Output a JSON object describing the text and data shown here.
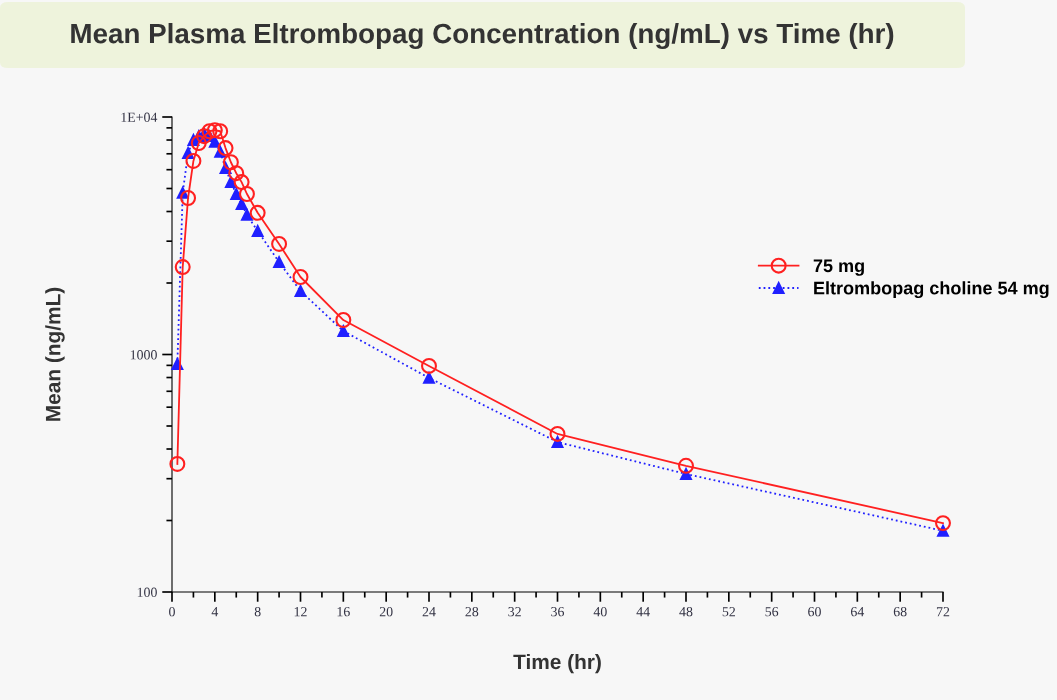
{
  "chart_data": {
    "type": "line",
    "title": "Mean Plasma Eltrombopag Concentration (ng/mL) vs Time (hr)",
    "xlabel": "Time (hr)",
    "ylabel": "Mean (ng/mL)",
    "x": [
      0.5,
      1,
      1.5,
      2,
      2.5,
      3,
      3.5,
      4,
      4.5,
      5,
      5.5,
      6,
      6.5,
      7,
      8,
      10,
      12,
      16,
      24,
      36,
      48,
      72
    ],
    "series": [
      {
        "name": "75 mg",
        "color": "#ff2020",
        "marker": "circle",
        "line_style": "solid",
        "values": [
          346,
          2335,
          4560,
          6530,
          7770,
          8300,
          8710,
          8800,
          8710,
          7400,
          6450,
          5800,
          5320,
          4740,
          3950,
          2920,
          2120,
          1397,
          895,
          463,
          340,
          195
        ]
      },
      {
        "name": "Eltrombopag choline 54 mg",
        "color": "#2020ff",
        "marker": "triangle",
        "line_style": "dotted",
        "values": [
          912,
          4790,
          7050,
          8000,
          8300,
          8500,
          8300,
          7850,
          7130,
          6100,
          5320,
          4740,
          4300,
          3870,
          3310,
          2450,
          1850,
          1255,
          797,
          428,
          314,
          181
        ]
      }
    ],
    "log": "y",
    "xlim": [
      0,
      72
    ],
    "ylim": [
      100,
      10000
    ],
    "xticks": [
      0,
      {
        "value": 2,
        "label": null
      },
      4,
      {
        "value": 6,
        "label": null
      },
      8,
      {
        "value": 10,
        "label": null
      },
      12,
      {
        "value": 14,
        "label": null
      },
      16,
      {
        "value": 18,
        "label": null
      },
      20,
      {
        "value": 22,
        "label": null
      },
      24,
      {
        "value": 26,
        "label": null
      },
      28,
      {
        "value": 30,
        "label": null
      },
      32,
      {
        "value": 34,
        "label": null
      },
      36,
      {
        "value": 38,
        "label": null
      },
      40,
      {
        "value": 42,
        "label": null
      },
      44,
      {
        "value": 46,
        "label": null
      },
      48,
      {
        "value": 50,
        "label": null
      },
      52,
      {
        "value": 54,
        "label": null
      },
      56,
      {
        "value": 58,
        "label": null
      },
      60,
      {
        "value": 62,
        "label": null
      },
      64,
      {
        "value": 66,
        "label": null
      },
      68,
      {
        "value": 70,
        "label": null
      },
      72
    ],
    "yticks": [
      100,
      {
        "value": 200,
        "label": null
      },
      {
        "value": 300,
        "label": null
      },
      {
        "value": 400,
        "label": null
      },
      {
        "value": 500,
        "label": null
      },
      {
        "value": 600,
        "label": null
      },
      {
        "value": 700,
        "label": null
      },
      {
        "value": 800,
        "label": null
      },
      {
        "value": 900,
        "label": null
      },
      1000,
      {
        "value": 2000,
        "label": null
      },
      {
        "value": 3000,
        "label": null
      },
      {
        "value": 4000,
        "label": null
      },
      {
        "value": 5000,
        "label": null
      },
      {
        "value": 6000,
        "label": null
      },
      {
        "value": 7000,
        "label": null
      },
      {
        "value": 8000,
        "label": null
      },
      {
        "value": 9000,
        "label": null
      },
      {
        "value": 10000,
        "label": "1E+04"
      }
    ],
    "grid": false,
    "legend": "right"
  }
}
